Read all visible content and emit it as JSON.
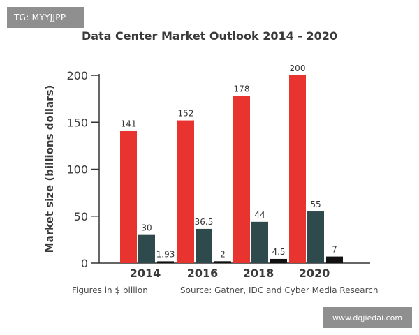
{
  "watermarks": {
    "tag": "TG: MYYJJPP",
    "url": "www.dqjiedai.com"
  },
  "footnote_left": "Figures in $ billion",
  "footnote_right": "Source: Gatner, IDC and Cyber Media Research",
  "colors": {
    "series": [
      "#e8332f",
      "#2e4a4d",
      "#111111"
    ],
    "axis": "#333333",
    "text": "#3a3a3a"
  },
  "chart_data": {
    "type": "bar",
    "title": "Data Center Market Outlook 2014 - 2020",
    "xlabel": "",
    "ylabel": "Market size (billions dollars)",
    "categories": [
      "2014",
      "2016",
      "2018",
      "2020"
    ],
    "series": [
      {
        "values": [
          141,
          152,
          178,
          200
        ],
        "labels": [
          "141",
          "152",
          "178",
          "200"
        ]
      },
      {
        "values": [
          30,
          36.5,
          44,
          55
        ],
        "labels": [
          "30",
          "36.5",
          "44",
          "55"
        ]
      },
      {
        "values": [
          1.93,
          2,
          4.5,
          7
        ],
        "labels": [
          "1.93",
          "2",
          "4.5",
          "7"
        ]
      }
    ],
    "ylim": [
      0,
      200
    ],
    "yticks": [
      0,
      50,
      100,
      150,
      200
    ],
    "grid": false,
    "legend": "none"
  }
}
